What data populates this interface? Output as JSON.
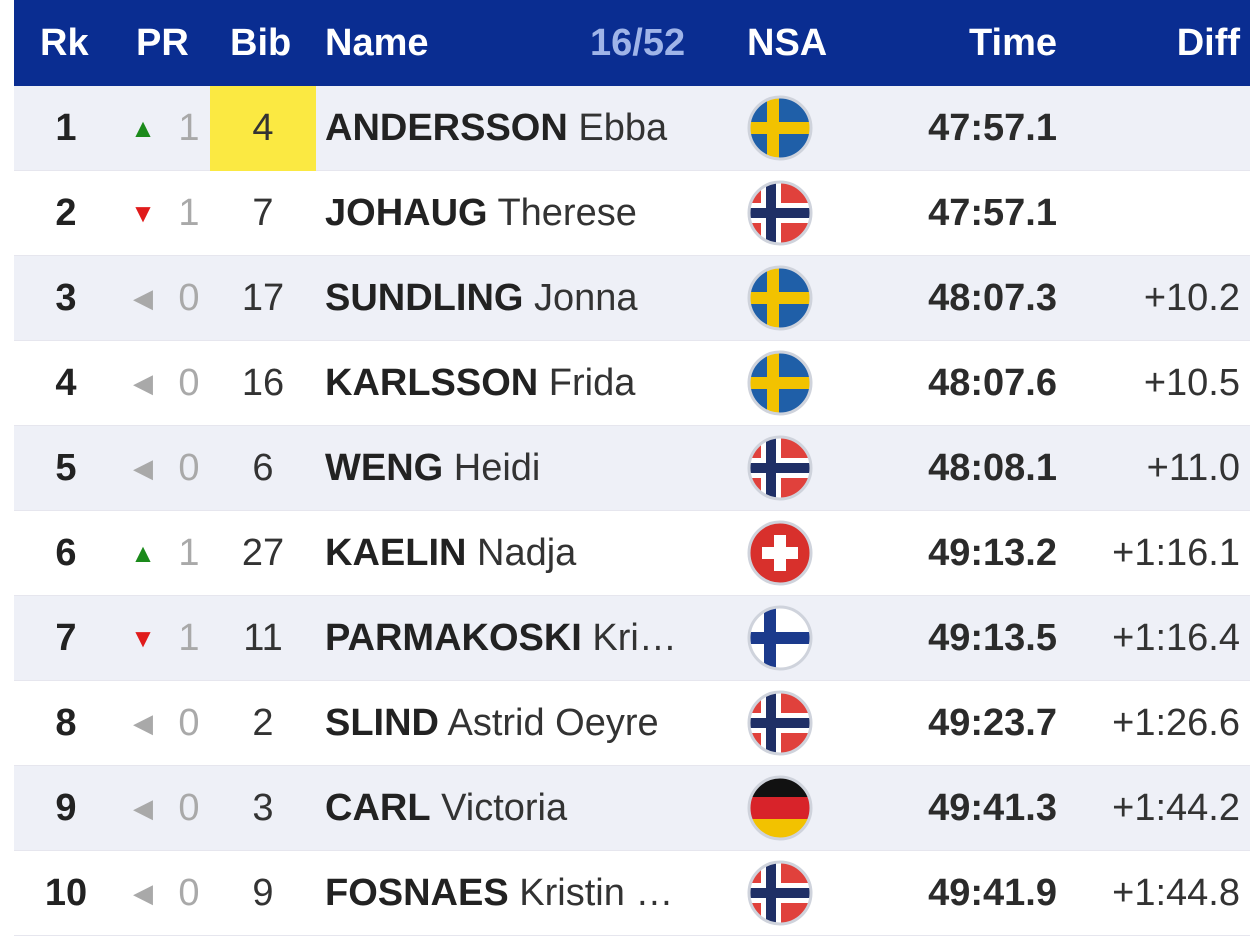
{
  "header": {
    "rank": "Rk",
    "pr": "PR",
    "bib": "Bib",
    "name": "Name",
    "count": "16/52",
    "nsa": "NSA",
    "time": "Time",
    "diff": "Diff"
  },
  "colors": {
    "header_bg": "#0a2d91",
    "highlight": "#fbe942",
    "up": "#1b8a1b",
    "down": "#e01b1b",
    "neutral": "#a9a9a9"
  },
  "rows": [
    {
      "rank": "1",
      "trend": "up",
      "trend_icon": "▲",
      "pr": "1",
      "bib": "4",
      "bib_highlight": true,
      "last": "ANDERSSON",
      "first": "Ebba",
      "nsa": "SWE",
      "time": "47:57.1",
      "diff": ""
    },
    {
      "rank": "2",
      "trend": "down",
      "trend_icon": "▼",
      "pr": "1",
      "bib": "7",
      "bib_highlight": false,
      "last": "JOHAUG",
      "first": "Therese",
      "nsa": "NOR",
      "time": "47:57.1",
      "diff": ""
    },
    {
      "rank": "3",
      "trend": "same",
      "trend_icon": "◀",
      "pr": "0",
      "bib": "17",
      "bib_highlight": false,
      "last": "SUNDLING",
      "first": "Jonna",
      "nsa": "SWE",
      "time": "48:07.3",
      "diff": "+10.2"
    },
    {
      "rank": "4",
      "trend": "same",
      "trend_icon": "◀",
      "pr": "0",
      "bib": "16",
      "bib_highlight": false,
      "last": "KARLSSON",
      "first": "Frida",
      "nsa": "SWE",
      "time": "48:07.6",
      "diff": "+10.5"
    },
    {
      "rank": "5",
      "trend": "same",
      "trend_icon": "◀",
      "pr": "0",
      "bib": "6",
      "bib_highlight": false,
      "last": "WENG",
      "first": "Heidi",
      "nsa": "NOR",
      "time": "48:08.1",
      "diff": "+11.0"
    },
    {
      "rank": "6",
      "trend": "up",
      "trend_icon": "▲",
      "pr": "1",
      "bib": "27",
      "bib_highlight": false,
      "last": "KAELIN",
      "first": "Nadja",
      "nsa": "SUI",
      "time": "49:13.2",
      "diff": "+1:16.1"
    },
    {
      "rank": "7",
      "trend": "down",
      "trend_icon": "▼",
      "pr": "1",
      "bib": "11",
      "bib_highlight": false,
      "last": "PARMAKOSKI",
      "first": "Kri…",
      "nsa": "FIN",
      "time": "49:13.5",
      "diff": "+1:16.4"
    },
    {
      "rank": "8",
      "trend": "same",
      "trend_icon": "◀",
      "pr": "0",
      "bib": "2",
      "bib_highlight": false,
      "last": "SLIND",
      "first": "Astrid Oeyre",
      "nsa": "NOR",
      "time": "49:23.7",
      "diff": "+1:26.6"
    },
    {
      "rank": "9",
      "trend": "same",
      "trend_icon": "◀",
      "pr": "0",
      "bib": "3",
      "bib_highlight": false,
      "last": "CARL",
      "first": "Victoria",
      "nsa": "GER",
      "time": "49:41.3",
      "diff": "+1:44.2"
    },
    {
      "rank": "10",
      "trend": "same",
      "trend_icon": "◀",
      "pr": "0",
      "bib": "9",
      "bib_highlight": false,
      "last": "FOSNAES",
      "first": "Kristin …",
      "nsa": "NOR",
      "time": "49:41.9",
      "diff": "+1:44.8"
    }
  ]
}
